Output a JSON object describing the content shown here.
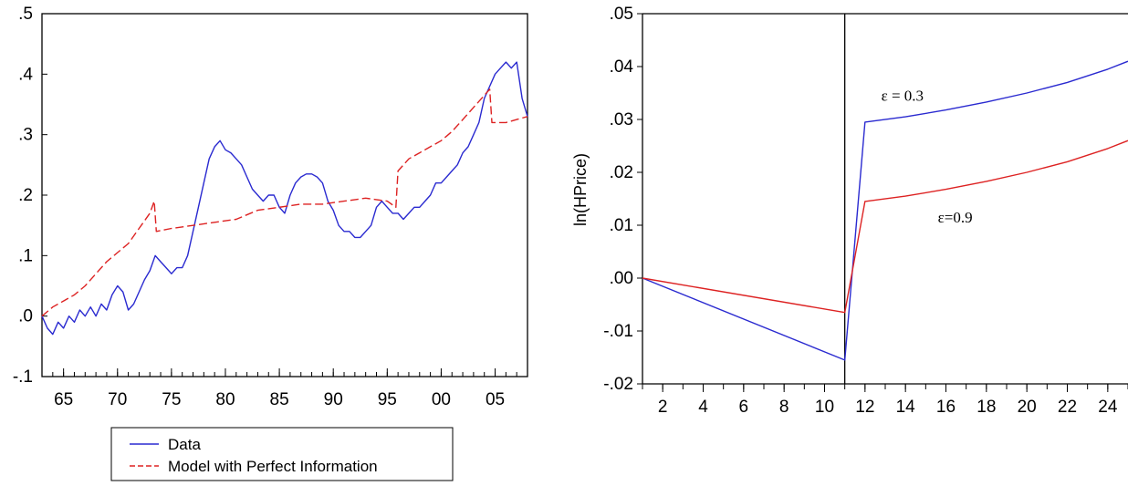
{
  "chart_data": [
    {
      "type": "line",
      "title": "",
      "xlabel": "",
      "ylabel": "",
      "xlim": [
        1963,
        2008
      ],
      "ylim": [
        -0.1,
        0.5
      ],
      "x_ticks": [
        1965,
        1970,
        1975,
        1980,
        1985,
        1990,
        1995,
        2000,
        2005
      ],
      "x_tick_labels": [
        "65",
        "70",
        "75",
        "80",
        "85",
        "90",
        "95",
        "00",
        "05"
      ],
      "y_ticks": [
        -0.1,
        0.0,
        0.1,
        0.2,
        0.3,
        0.4,
        0.5
      ],
      "y_tick_labels": [
        "-.1",
        ".0",
        ".1",
        ".2",
        ".3",
        ".4",
        ".5"
      ],
      "grid": false,
      "legend_position": "bottom",
      "series": [
        {
          "name": "Data",
          "color": "#2a2ad0",
          "style": "solid",
          "points": [
            [
              1963.0,
              0.0
            ],
            [
              1963.5,
              -0.02
            ],
            [
              1964.0,
              -0.03
            ],
            [
              1964.5,
              -0.01
            ],
            [
              1965.0,
              -0.02
            ],
            [
              1965.5,
              0.0
            ],
            [
              1966.0,
              -0.01
            ],
            [
              1966.5,
              0.01
            ],
            [
              1967.0,
              0.0
            ],
            [
              1967.5,
              0.015
            ],
            [
              1968.0,
              0.0
            ],
            [
              1968.5,
              0.02
            ],
            [
              1969.0,
              0.01
            ],
            [
              1969.5,
              0.035
            ],
            [
              1970.0,
              0.05
            ],
            [
              1970.5,
              0.04
            ],
            [
              1971.0,
              0.01
            ],
            [
              1971.5,
              0.02
            ],
            [
              1972.0,
              0.04
            ],
            [
              1972.5,
              0.06
            ],
            [
              1973.0,
              0.075
            ],
            [
              1973.5,
              0.1
            ],
            [
              1974.0,
              0.09
            ],
            [
              1974.5,
              0.08
            ],
            [
              1975.0,
              0.07
            ],
            [
              1975.5,
              0.08
            ],
            [
              1976.0,
              0.08
            ],
            [
              1976.5,
              0.1
            ],
            [
              1977.0,
              0.14
            ],
            [
              1977.5,
              0.18
            ],
            [
              1978.0,
              0.22
            ],
            [
              1978.5,
              0.26
            ],
            [
              1979.0,
              0.28
            ],
            [
              1979.5,
              0.29
            ],
            [
              1980.0,
              0.275
            ],
            [
              1980.5,
              0.27
            ],
            [
              1981.0,
              0.26
            ],
            [
              1981.5,
              0.25
            ],
            [
              1982.0,
              0.23
            ],
            [
              1982.5,
              0.21
            ],
            [
              1983.0,
              0.2
            ],
            [
              1983.5,
              0.19
            ],
            [
              1984.0,
              0.2
            ],
            [
              1984.5,
              0.2
            ],
            [
              1985.0,
              0.18
            ],
            [
              1985.5,
              0.17
            ],
            [
              1986.0,
              0.2
            ],
            [
              1986.5,
              0.22
            ],
            [
              1987.0,
              0.23
            ],
            [
              1987.5,
              0.235
            ],
            [
              1988.0,
              0.235
            ],
            [
              1988.5,
              0.23
            ],
            [
              1989.0,
              0.22
            ],
            [
              1989.5,
              0.19
            ],
            [
              1990.0,
              0.175
            ],
            [
              1990.5,
              0.15
            ],
            [
              1991.0,
              0.14
            ],
            [
              1991.5,
              0.14
            ],
            [
              1992.0,
              0.13
            ],
            [
              1992.5,
              0.13
            ],
            [
              1993.0,
              0.14
            ],
            [
              1993.5,
              0.15
            ],
            [
              1994.0,
              0.18
            ],
            [
              1994.5,
              0.19
            ],
            [
              1995.0,
              0.18
            ],
            [
              1995.5,
              0.17
            ],
            [
              1996.0,
              0.17
            ],
            [
              1996.5,
              0.16
            ],
            [
              1997.0,
              0.17
            ],
            [
              1997.5,
              0.18
            ],
            [
              1998.0,
              0.18
            ],
            [
              1998.5,
              0.19
            ],
            [
              1999.0,
              0.2
            ],
            [
              1999.5,
              0.22
            ],
            [
              2000.0,
              0.22
            ],
            [
              2000.5,
              0.23
            ],
            [
              2001.0,
              0.24
            ],
            [
              2001.5,
              0.25
            ],
            [
              2002.0,
              0.27
            ],
            [
              2002.5,
              0.28
            ],
            [
              2003.0,
              0.3
            ],
            [
              2003.5,
              0.32
            ],
            [
              2004.0,
              0.36
            ],
            [
              2004.5,
              0.38
            ],
            [
              2005.0,
              0.4
            ],
            [
              2005.5,
              0.41
            ],
            [
              2006.0,
              0.42
            ],
            [
              2006.5,
              0.41
            ],
            [
              2007.0,
              0.42
            ],
            [
              2007.5,
              0.36
            ],
            [
              2008.0,
              0.33
            ]
          ]
        },
        {
          "name": "Model with Perfect Information",
          "color": "#dd2222",
          "style": "dashed",
          "points": [
            [
              1963.0,
              0.0
            ],
            [
              1964.0,
              0.015
            ],
            [
              1965.0,
              0.025
            ],
            [
              1966.0,
              0.035
            ],
            [
              1967.0,
              0.05
            ],
            [
              1968.0,
              0.07
            ],
            [
              1969.0,
              0.09
            ],
            [
              1970.0,
              0.105
            ],
            [
              1971.0,
              0.12
            ],
            [
              1972.0,
              0.145
            ],
            [
              1973.0,
              0.17
            ],
            [
              1973.4,
              0.19
            ],
            [
              1973.6,
              0.14
            ],
            [
              1975.0,
              0.145
            ],
            [
              1977.0,
              0.15
            ],
            [
              1979.0,
              0.155
            ],
            [
              1981.0,
              0.16
            ],
            [
              1983.0,
              0.175
            ],
            [
              1985.0,
              0.18
            ],
            [
              1987.0,
              0.185
            ],
            [
              1989.0,
              0.185
            ],
            [
              1991.0,
              0.19
            ],
            [
              1993.0,
              0.195
            ],
            [
              1995.0,
              0.19
            ],
            [
              1995.8,
              0.18
            ],
            [
              1996.0,
              0.24
            ],
            [
              1997.0,
              0.26
            ],
            [
              1998.0,
              0.27
            ],
            [
              1999.0,
              0.28
            ],
            [
              2000.0,
              0.29
            ],
            [
              2001.0,
              0.305
            ],
            [
              2002.0,
              0.325
            ],
            [
              2003.0,
              0.345
            ],
            [
              2004.0,
              0.365
            ],
            [
              2004.5,
              0.375
            ],
            [
              2004.7,
              0.32
            ],
            [
              2006.0,
              0.32
            ],
            [
              2007.0,
              0.325
            ],
            [
              2008.0,
              0.33
            ]
          ]
        }
      ]
    },
    {
      "type": "line",
      "title": "",
      "xlabel": "",
      "ylabel": "ln(HPrice)",
      "xlim": [
        1,
        25
      ],
      "ylim": [
        -0.02,
        0.05
      ],
      "x_ticks": [
        2,
        4,
        6,
        8,
        10,
        12,
        14,
        16,
        18,
        20,
        22,
        24
      ],
      "x_tick_labels": [
        "2",
        "4",
        "6",
        "8",
        "10",
        "12",
        "14",
        "16",
        "18",
        "20",
        "22",
        "24"
      ],
      "y_ticks": [
        -0.02,
        -0.01,
        0.0,
        0.01,
        0.02,
        0.03,
        0.04,
        0.05
      ],
      "y_tick_labels": [
        "-.02",
        "-.01",
        ".00",
        ".01",
        ".02",
        ".03",
        ".04",
        ".05"
      ],
      "grid": false,
      "vertical_line_at": 11,
      "series": [
        {
          "color": "#2a2ad0",
          "style": "solid",
          "points": [
            [
              1,
              0.0
            ],
            [
              11,
              -0.0155
            ],
            [
              12,
              0.0295
            ],
            [
              14,
              0.0305
            ],
            [
              16,
              0.0318
            ],
            [
              18,
              0.0333
            ],
            [
              20,
              0.035
            ],
            [
              22,
              0.037
            ],
            [
              24,
              0.0395
            ],
            [
              25,
              0.041
            ]
          ]
        },
        {
          "color": "#dd2222",
          "style": "solid",
          "points": [
            [
              1,
              0.0
            ],
            [
              11,
              -0.0065
            ],
            [
              12,
              0.0145
            ],
            [
              14,
              0.0155
            ],
            [
              16,
              0.0168
            ],
            [
              18,
              0.0183
            ],
            [
              20,
              0.02
            ],
            [
              22,
              0.022
            ],
            [
              24,
              0.0245
            ],
            [
              25,
              0.026
            ]
          ]
        }
      ],
      "annotations": [
        {
          "text": "ε = 0.3",
          "x": 12.8,
          "y": 0.0335
        },
        {
          "text": "ε=0.9",
          "x": 15.6,
          "y": 0.0105
        }
      ]
    }
  ]
}
